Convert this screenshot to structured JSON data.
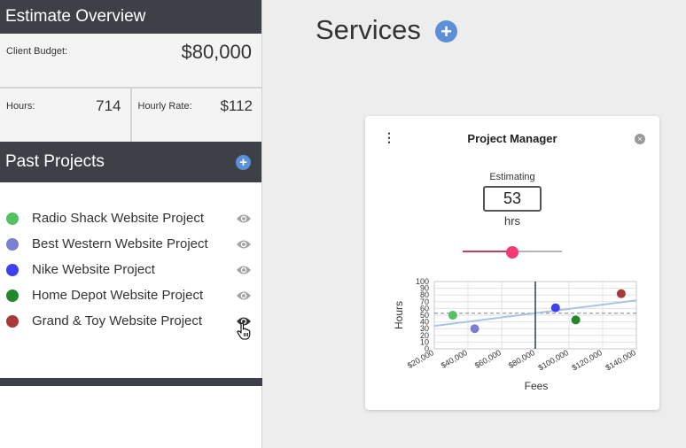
{
  "sidebar": {
    "header": "Estimate Overview",
    "budget": {
      "label": "Client Budget:",
      "value": "$80,000"
    },
    "hours": {
      "label": "Hours:",
      "value": "714"
    },
    "rate": {
      "label": "Hourly Rate:",
      "value": "$112"
    },
    "projects_header": "Past Projects",
    "add_icon": "+",
    "projects": [
      {
        "name": "Radio Shack Website Project",
        "color": "#55c162"
      },
      {
        "name": "Best Western Website Project",
        "color": "#7b7fd1"
      },
      {
        "name": "Nike Website Project",
        "color": "#3f3ff2"
      },
      {
        "name": "Home Depot Website Project",
        "color": "#23882c"
      },
      {
        "name": "Grand & Toy Website Project",
        "color": "#a63a3a"
      }
    ]
  },
  "main": {
    "title": "Services",
    "add_icon": "+"
  },
  "card": {
    "menu_icon": "⋮",
    "title": "Project Manager",
    "close_icon": "×",
    "estimating_label": "Estimating",
    "estimate_value": "53",
    "unit": "hrs",
    "slider": {
      "min": 0,
      "max": 100,
      "value": 50,
      "fill_color": "#c83c66",
      "knob_color": "#ef3d74"
    }
  },
  "chart_data": {
    "type": "scatter",
    "xlabel": "Fees",
    "ylabel": "Hours",
    "xlim": [
      20000,
      140000
    ],
    "ylim": [
      0,
      100
    ],
    "x_ticks": [
      "$20,000",
      "$40,000",
      "$60,000",
      "$80,000",
      "$100,000",
      "$120,000",
      "$140,000"
    ],
    "y_ticks": [
      "0",
      "10",
      "20",
      "30",
      "40",
      "50",
      "60",
      "70",
      "80",
      "90",
      "100"
    ],
    "points": [
      {
        "x": 31000,
        "y": 50,
        "color": "#55c162"
      },
      {
        "x": 44000,
        "y": 30,
        "color": "#7b7fd1"
      },
      {
        "x": 92000,
        "y": 61,
        "color": "#3f3ff2"
      },
      {
        "x": 104000,
        "y": 43,
        "color": "#23882c"
      },
      {
        "x": 131000,
        "y": 82,
        "color": "#a63a3a"
      }
    ],
    "trend_line": {
      "x": [
        20000,
        140000
      ],
      "y": [
        34,
        72
      ],
      "color": "#a8c4e6"
    },
    "reference_line": {
      "y": 53,
      "color": "#9a9a9a",
      "dashed": true
    },
    "vertical_marker": {
      "x": 80000,
      "color": "#20404f"
    },
    "grid": true
  }
}
